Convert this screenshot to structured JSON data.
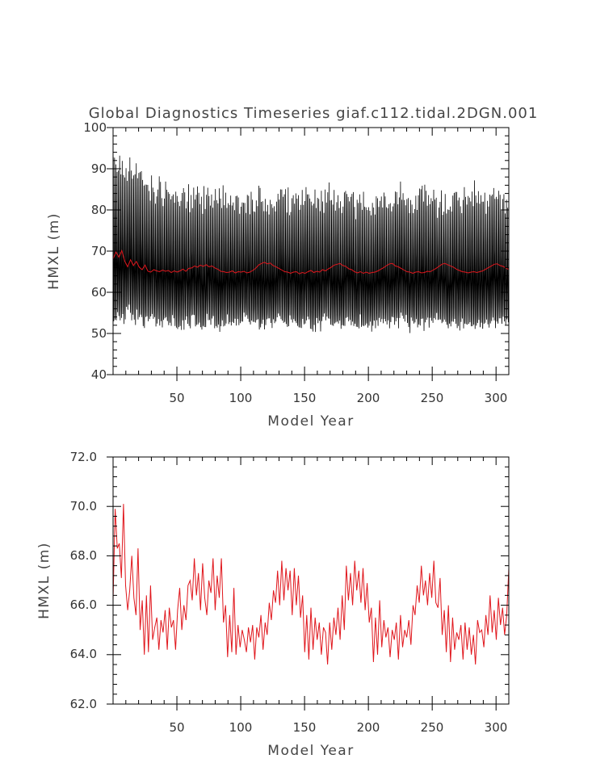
{
  "chart_data": [
    {
      "type": "line",
      "title": "Global Diagnostics Timeseries giaf.c112.tidal.2DGN.001",
      "xlabel": "Model Year",
      "ylabel": "HMXL (m)",
      "xlim": [
        0,
        310
      ],
      "ylim": [
        40,
        100
      ],
      "x_ticks": [
        50,
        100,
        150,
        200,
        250,
        300
      ],
      "y_ticks": [
        40,
        50,
        60,
        70,
        80,
        90,
        100
      ],
      "y_tick_labels": [
        "40",
        "50",
        "60",
        "70",
        "80",
        "90",
        "100"
      ],
      "series": [
        {
          "kind": "monthly",
          "color": "#000000",
          "x_range": [
            0,
            310
          ],
          "seasonal_max": [
            93,
            91,
            90,
            89,
            88,
            87,
            86,
            85,
            84,
            84,
            83,
            83,
            83,
            82,
            82,
            82,
            84,
            82,
            83,
            82,
            81,
            82,
            82,
            83,
            80,
            81,
            83,
            83,
            82,
            83,
            82,
            83,
            82,
            82,
            83,
            82,
            82,
            83,
            81,
            82,
            81,
            82,
            83,
            82,
            84,
            84,
            82,
            81,
            84,
            83,
            82,
            82,
            81,
            83,
            82,
            82,
            83,
            84,
            81,
            81,
            83,
            82,
            82
          ],
          "seasonal_min": [
            53,
            54,
            55,
            54,
            54,
            53,
            54,
            53,
            53,
            53,
            52,
            53,
            53,
            53,
            52,
            53,
            52,
            52,
            53,
            53,
            54,
            53,
            52,
            52,
            52,
            53,
            53,
            52,
            53,
            52,
            52,
            52,
            52,
            53,
            53,
            52,
            52,
            53,
            52,
            53,
            52,
            52,
            53,
            53,
            52,
            53,
            52,
            53,
            52,
            53,
            53,
            53,
            53,
            52,
            53,
            52,
            53,
            52,
            52,
            53,
            53,
            52,
            53
          ]
        },
        {
          "kind": "annual",
          "color": "#e0161c",
          "x_range": [
            0,
            310
          ],
          "values": [
            68.1,
            69.8,
            68.5,
            70.1,
            67.6,
            66.2,
            67.9,
            66.5,
            67.5,
            66.1,
            65.5,
            66.6,
            65.1,
            64.9,
            65.5,
            65.2,
            65.0,
            65.4,
            65.1,
            65.3,
            64.8,
            65.2,
            64.9,
            65.2,
            65.6,
            65.1,
            65.8,
            65.9,
            66.4,
            66.1,
            66.6,
            66.3,
            66.7,
            66.2,
            66.4,
            65.9,
            65.6,
            65.1,
            65.0,
            64.8,
            64.9,
            65.2,
            64.7,
            65.0,
            64.9,
            65.1,
            64.7,
            64.9,
            65.3,
            65.8,
            66.6,
            67.0,
            67.3,
            66.9,
            67.1,
            66.5,
            66.2,
            65.8,
            65.4,
            65.0,
            64.9,
            64.6,
            64.9,
            65.0,
            64.5,
            64.8,
            64.6,
            65.0,
            65.3,
            64.8,
            65.1,
            64.9,
            65.5,
            65.2,
            65.7,
            66.1,
            66.6,
            66.8,
            67.0,
            66.5,
            66.3,
            65.7,
            65.5,
            65.0,
            64.7,
            65.0,
            64.6,
            64.9,
            64.6,
            64.8,
            64.9,
            65.2,
            65.6,
            66.0,
            66.5,
            66.9,
            67.0,
            66.4,
            66.2,
            65.8,
            65.4,
            65.0,
            64.9,
            64.6,
            64.9,
            65.0,
            64.7,
            64.8,
            65.1,
            65.0,
            65.4,
            65.8,
            66.3,
            66.8,
            67.0,
            66.7,
            66.4,
            66.1,
            65.6,
            65.3,
            65.0,
            64.9,
            64.7,
            64.9,
            65.0,
            64.8,
            65.0,
            65.2,
            65.6,
            66.0,
            66.4,
            66.8,
            66.9,
            66.5,
            66.3,
            65.9,
            65.5
          ]
        }
      ]
    },
    {
      "type": "line",
      "title": "",
      "xlabel": "Model Year",
      "ylabel": "HMXL (m)",
      "xlim": [
        0,
        310
      ],
      "ylim": [
        62,
        72
      ],
      "x_ticks": [
        50,
        100,
        150,
        200,
        250,
        300
      ],
      "y_ticks": [
        62,
        64,
        66,
        68,
        70,
        72
      ],
      "y_tick_labels": [
        "62.0",
        "64.0",
        "66.0",
        "68.0",
        "70.0",
        "72.0"
      ],
      "series": [
        {
          "kind": "annual",
          "color": "#e0161c",
          "x_range": [
            0,
            310
          ],
          "values": [
            66.2,
            69.9,
            68.3,
            68.5,
            67.1,
            70.1,
            66.8,
            65.8,
            66.6,
            68.0,
            66.3,
            65.6,
            68.3,
            65.0,
            66.2,
            64.0,
            66.4,
            64.1,
            66.8,
            64.6,
            65.1,
            65.5,
            64.2,
            65.4,
            64.9,
            65.8,
            64.2,
            65.9,
            65.1,
            65.4,
            64.2,
            65.8,
            66.7,
            65.0,
            66.0,
            65.4,
            66.8,
            67.0,
            66.2,
            67.9,
            66.4,
            67.3,
            65.8,
            67.7,
            66.3,
            65.6,
            67.0,
            66.5,
            67.9,
            65.8,
            67.2,
            66.3,
            67.9,
            65.3,
            66.0,
            63.9,
            65.6,
            64.1,
            66.7,
            64.0,
            65.2,
            64.3,
            65.0,
            64.6,
            64.1,
            65.1,
            64.5,
            65.2,
            63.8,
            65.1,
            64.7,
            65.6,
            64.2,
            65.3,
            64.8,
            66.1,
            65.4,
            66.6,
            66.1,
            67.4,
            66.0,
            67.8,
            66.2,
            67.5,
            66.6,
            67.4,
            65.6,
            67.5,
            66.0,
            67.2,
            65.5,
            66.4,
            64.1,
            65.6,
            63.8,
            65.9,
            64.2,
            65.5,
            64.6,
            65.3,
            64.0,
            65.1,
            64.9,
            63.6,
            65.3,
            64.2,
            65.5,
            64.8,
            65.9,
            64.6,
            66.4,
            65.0,
            67.6,
            66.2,
            67.3,
            66.0,
            67.8,
            66.6,
            67.4,
            66.1,
            67.5,
            65.8,
            66.9,
            65.3,
            65.9,
            63.7,
            65.5,
            64.0,
            66.2,
            64.3,
            65.4,
            64.7,
            65.1,
            63.9,
            65.0,
            64.6,
            65.3,
            63.8,
            65.6,
            64.3,
            65.0,
            64.7,
            65.4,
            64.4,
            66.0,
            65.6,
            66.8,
            66.1,
            67.6,
            66.4,
            67.0,
            66.0,
            67.3,
            66.3,
            67.8,
            66.1,
            65.9,
            67.1,
            64.8,
            65.8,
            64.1,
            66.0,
            63.7,
            65.5,
            64.2,
            64.9,
            64.6,
            65.2,
            63.8,
            65.3,
            64.2,
            65.1,
            64.0,
            64.8,
            63.6,
            65.4,
            64.9,
            65.0,
            64.3,
            65.6,
            64.8,
            66.4,
            64.9,
            65.8,
            64.6,
            66.3,
            65.2,
            65.9,
            64.8,
            65.6,
            67.5
          ]
        }
      ]
    }
  ]
}
